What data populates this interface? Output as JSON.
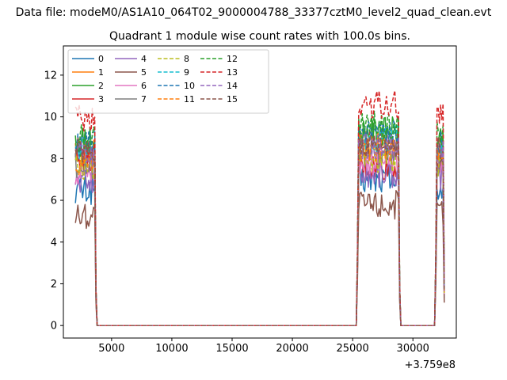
{
  "figure": {
    "suptitle": "Data file: modeM0/AS1A10_064T02_9000004788_33377cztM0_level2_quad_clean.evt"
  },
  "chart_data": {
    "type": "line",
    "title": "Quadrant 1 module wise count rates with 100.0s bins.",
    "xlabel": "",
    "ylabel": "",
    "x_offset_label": "+3.759e8",
    "xlim": [
      1000,
      33600
    ],
    "ylim": [
      -0.6,
      13.4
    ],
    "x_ticks": [
      5000,
      10000,
      15000,
      20000,
      25000,
      30000
    ],
    "y_ticks": [
      0,
      2,
      4,
      6,
      8,
      10,
      12
    ],
    "grid": false,
    "legend": {
      "placement": "top-left",
      "columns": 4
    },
    "series": [
      {
        "name": "0",
        "color": "#1f77b4",
        "dash": false,
        "levels": [
          6.5,
          7.0,
          6.6
        ]
      },
      {
        "name": "1",
        "color": "#ff7f0e",
        "dash": false,
        "levels": [
          8.2,
          8.8,
          8.4
        ]
      },
      {
        "name": "2",
        "color": "#2ca02c",
        "dash": false,
        "levels": [
          8.8,
          9.3,
          9.0
        ]
      },
      {
        "name": "3",
        "color": "#d62728",
        "dash": false,
        "levels": [
          8.0,
          7.6,
          7.8
        ]
      },
      {
        "name": "4",
        "color": "#9467bd",
        "dash": false,
        "levels": [
          6.9,
          7.3,
          7.1
        ]
      },
      {
        "name": "5",
        "color": "#8c564b",
        "dash": false,
        "levels": [
          5.3,
          5.8,
          5.5
        ]
      },
      {
        "name": "6",
        "color": "#e377c2",
        "dash": false,
        "levels": [
          7.4,
          7.9,
          7.6
        ]
      },
      {
        "name": "7",
        "color": "#7f7f7f",
        "dash": false,
        "levels": [
          7.7,
          8.3,
          8.0
        ]
      },
      {
        "name": "8",
        "color": "#bcbd22",
        "dash": true,
        "levels": [
          7.6,
          8.0,
          7.8
        ]
      },
      {
        "name": "9",
        "color": "#17becf",
        "dash": true,
        "levels": [
          8.4,
          8.9,
          8.6
        ]
      },
      {
        "name": "10",
        "color": "#1f77b4",
        "dash": true,
        "levels": [
          8.6,
          9.1,
          8.8
        ]
      },
      {
        "name": "11",
        "color": "#ff7f0e",
        "dash": true,
        "levels": [
          7.8,
          8.5,
          8.1
        ]
      },
      {
        "name": "12",
        "color": "#2ca02c",
        "dash": true,
        "levels": [
          9.0,
          9.6,
          9.3
        ]
      },
      {
        "name": "13",
        "color": "#d62728",
        "dash": true,
        "levels": [
          9.9,
          10.6,
          10.2
        ]
      },
      {
        "name": "14",
        "color": "#9467bd",
        "dash": true,
        "levels": [
          8.1,
          8.6,
          8.3
        ]
      },
      {
        "name": "15",
        "color": "#8c564b",
        "dash": true,
        "levels": [
          8.3,
          8.7,
          8.5
        ]
      }
    ],
    "segments": [
      {
        "start": 2000,
        "end": 3700
      },
      {
        "start": 25400,
        "end": 28900
      },
      {
        "start": 31900,
        "end": 32600
      }
    ],
    "zero_level": 0
  }
}
